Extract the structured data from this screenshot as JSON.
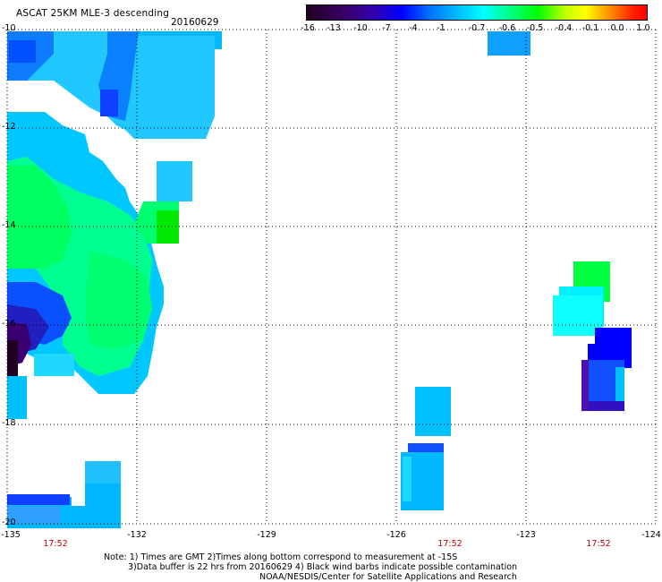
{
  "header": {
    "title": "ASCAT 25KM MLE-3 descending",
    "date": "20160629"
  },
  "colorbar": {
    "labels": [
      "-16",
      "-13",
      "-10",
      "-7",
      "-4",
      "-1",
      "-0.7",
      "-0.6",
      "-0.5",
      "-0.4",
      "-0.1",
      "0.0",
      "1.0"
    ],
    "colors": [
      "#200020",
      "#3a0060",
      "#3000b0",
      "#0000ff",
      "#0070ff",
      "#00b8ff",
      "#00ffff",
      "#00ff80",
      "#00ff00",
      "#c0ff00",
      "#ffff00",
      "#ff8000",
      "#ff2000",
      "#ff0000"
    ]
  },
  "axes": {
    "lat_labels": [
      "-10",
      "-12",
      "-14",
      "-16",
      "-18",
      "-20"
    ],
    "lon_labels": [
      "-135",
      "-132",
      "-129",
      "-126",
      "-123",
      "-124"
    ],
    "time_labels": [
      "17:52",
      "17:52",
      "17:52"
    ]
  },
  "notes": {
    "line1": "Note: 1) Times are GMT 2)Times along bottom correspond to measurement at -15S",
    "line2": "3)Data buffer is 22 hrs from 20160629 4) Black wind barbs indicate possible contamination",
    "line3": "NOAA/NESDIS/Center for Satellite Applications and Research"
  },
  "swaths": [
    {
      "name": "swath-west",
      "value_class": "mixed"
    },
    {
      "name": "swath-central",
      "value_class": "-1"
    },
    {
      "name": "swath-top",
      "value_class": "-1"
    },
    {
      "name": "swath-east",
      "value_class": "mixed"
    }
  ]
}
